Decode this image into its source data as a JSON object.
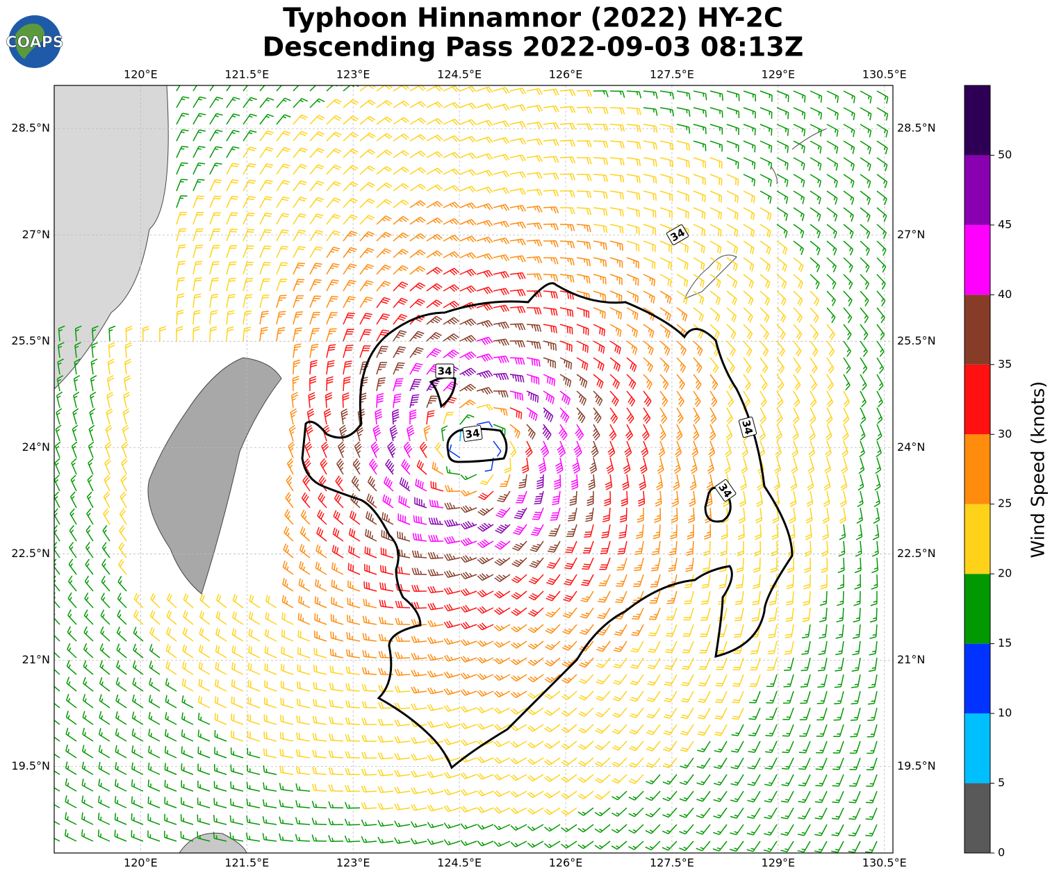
{
  "logo": "COAPS",
  "title": [
    "Typhoon Hinnamnor (2022) HY-2C",
    "Descending Pass 2022-09-03 08:13Z"
  ],
  "map": {
    "lonlim": [
      118.78,
      130.62
    ],
    "latlim": [
      18.28,
      29.11
    ],
    "lonticks": [
      {
        "value": 120,
        "label": "120°E"
      },
      {
        "value": 121.5,
        "label": "121.5°E"
      },
      {
        "value": 123,
        "label": "123°E"
      },
      {
        "value": 124.5,
        "label": "124.5°E"
      },
      {
        "value": 126,
        "label": "126°E"
      },
      {
        "value": 127.5,
        "label": "127.5°E"
      },
      {
        "value": 129,
        "label": "129°E"
      },
      {
        "value": 130.5,
        "label": "130.5°E"
      }
    ],
    "latticks": [
      {
        "value": 28.5,
        "label": "28.5°N"
      },
      {
        "value": 27,
        "label": "27°N"
      },
      {
        "value": 25.5,
        "label": "25.5°N"
      },
      {
        "value": 24,
        "label": "24°N"
      },
      {
        "value": 22.5,
        "label": "22.5°N"
      },
      {
        "value": 21,
        "label": "21°N"
      },
      {
        "value": 19.5,
        "label": "19.5°N"
      }
    ],
    "grid": true,
    "contour_labels": [
      "34",
      "34",
      "34",
      "34",
      "34"
    ]
  },
  "colorbar": {
    "label": "Wind Speed (knots)",
    "lim": [
      0,
      55
    ],
    "ticks": [
      0,
      5,
      10,
      15,
      20,
      25,
      30,
      35,
      40,
      45,
      50
    ],
    "colors": [
      "#595959",
      "#00bfff",
      "#0033ff",
      "#009900",
      "#ffd21a",
      "#ff8c0d",
      "#ff1111",
      "#873c28",
      "#ff00ff",
      "#8800b0",
      "#2e0055"
    ]
  }
}
